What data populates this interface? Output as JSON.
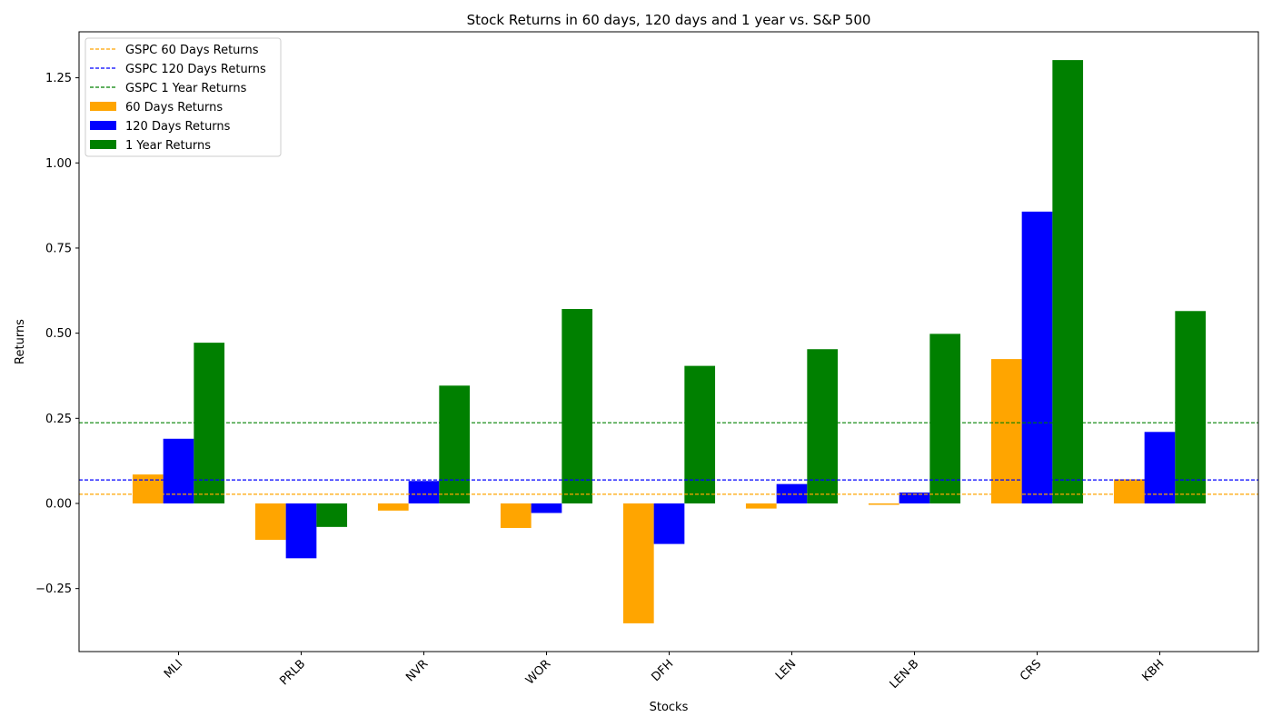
{
  "chart_data": {
    "type": "bar",
    "title": "Stock Returns in 60 days, 120 days and 1 year vs. S&P 500",
    "xlabel": "Stocks",
    "ylabel": "Returns",
    "ylim": [
      -0.435,
      1.385
    ],
    "yticks": [
      -0.25,
      0.0,
      0.25,
      0.5,
      0.75,
      1.0,
      1.25
    ],
    "ytick_labels": [
      "−0.25",
      "0.00",
      "0.25",
      "0.50",
      "0.75",
      "1.00",
      "1.25"
    ],
    "grid": false,
    "legend_position": "top-left",
    "categories": [
      "MLI",
      "PRLB",
      "NVR",
      "WOR",
      "DFH",
      "LEN",
      "LEN-B",
      "CRS",
      "KBH"
    ],
    "series": [
      {
        "name": "60 Days Returns",
        "color": "#FFA500",
        "values": [
          0.085,
          -0.107,
          -0.021,
          -0.072,
          -0.352,
          -0.015,
          -0.004,
          0.424,
          0.071
        ]
      },
      {
        "name": "120 Days Returns",
        "color": "#0000FF",
        "values": [
          0.19,
          -0.161,
          0.066,
          -0.028,
          -0.119,
          0.057,
          0.032,
          0.857,
          0.21
        ]
      },
      {
        "name": "1 Year Returns",
        "color": "#008000",
        "values": [
          0.472,
          -0.069,
          0.346,
          0.571,
          0.404,
          0.453,
          0.498,
          1.302,
          0.565
        ]
      }
    ],
    "reference_lines": [
      {
        "name": "GSPC 60 Days Returns",
        "color": "#FFA500",
        "value": 0.027
      },
      {
        "name": "GSPC 120 Days Returns",
        "color": "#0000FF",
        "value": 0.069
      },
      {
        "name": "GSPC 1 Year Returns",
        "color": "#008000",
        "value": 0.237
      }
    ]
  }
}
